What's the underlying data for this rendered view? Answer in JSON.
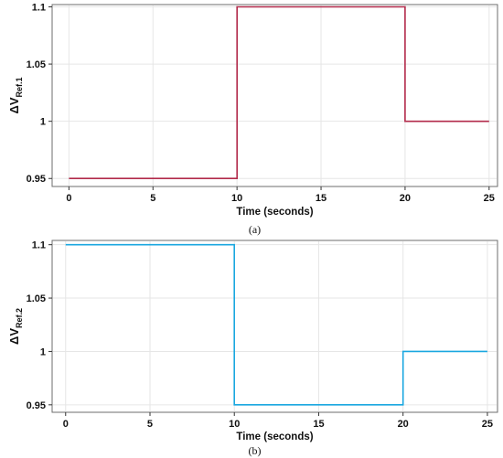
{
  "chart_data": [
    {
      "type": "line",
      "caption": "(a)",
      "xlabel": "Time (seconds)",
      "ylabel_main": "ΔV",
      "ylabel_sub": "Ref.1",
      "xlim": [
        -1,
        25.5
      ],
      "ylim": [
        0.943,
        1.102
      ],
      "xticks": [
        0,
        5,
        10,
        15,
        20,
        25
      ],
      "xtick_labels": [
        "0",
        "5",
        "10",
        "15",
        "20",
        "25"
      ],
      "yticks": [
        0.95,
        1.0,
        1.05,
        1.1
      ],
      "ytick_labels": [
        "0.95",
        "1",
        "1.05",
        "1.1"
      ],
      "grid": true,
      "series": [
        {
          "color": "#b22a4a",
          "x": [
            0,
            10,
            10,
            20,
            20,
            25
          ],
          "y": [
            0.95,
            0.95,
            1.1,
            1.1,
            1.0,
            1.0
          ]
        }
      ]
    },
    {
      "type": "line",
      "caption": "(b)",
      "xlabel": "Time (seconds)",
      "ylabel_main": "ΔV",
      "ylabel_sub": "Ref.2",
      "xlim": [
        -0.8,
        25.6
      ],
      "ylim": [
        0.943,
        1.104
      ],
      "xticks": [
        0,
        5,
        10,
        15,
        20,
        25
      ],
      "xtick_labels": [
        "0",
        "5",
        "10",
        "15",
        "20",
        "25"
      ],
      "yticks": [
        0.95,
        1.0,
        1.05,
        1.1
      ],
      "ytick_labels": [
        "0.95",
        "1",
        "1.05",
        "1.1"
      ],
      "grid": true,
      "series": [
        {
          "color": "#1aa7e0",
          "x": [
            0,
            10,
            10,
            20,
            20,
            25
          ],
          "y": [
            1.1,
            1.1,
            0.95,
            0.95,
            1.0,
            1.0
          ]
        }
      ]
    }
  ]
}
